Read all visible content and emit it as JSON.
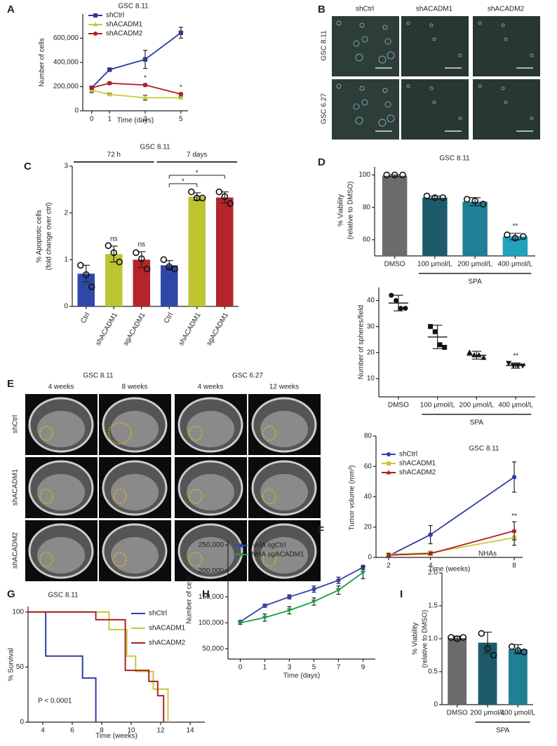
{
  "chart_data": [
    {
      "type": "line",
      "panel_label": "A",
      "title": "GSC 8.11",
      "x_label": "Time (days)",
      "y_label": [
        "Number of cells"
      ],
      "x": [
        0,
        1,
        3,
        5
      ],
      "xlim": [
        -0.5,
        5.4
      ],
      "xticks": [
        0,
        1,
        3,
        5
      ],
      "ylim": [
        0,
        800000
      ],
      "yticks": [
        0,
        {
          "value": 200000,
          "label": "200,000"
        },
        {
          "value": 400000,
          "label": "400,000"
        },
        {
          "value": 600000,
          "label": "600,000"
        }
      ],
      "legend": "upper left",
      "series": [
        {
          "name": "shCtrl",
          "color": "#2b3990",
          "marker": "square",
          "values": [
            190000,
            340000,
            425000,
            645000
          ],
          "errors": [
            10000,
            10000,
            75000,
            45000
          ]
        },
        {
          "name": "shACADM1",
          "color": "#c8c83c",
          "marker": "triangle",
          "values": [
            170000,
            135000,
            108000,
            108000
          ],
          "errors": [
            20000,
            10000,
            20000,
            8000
          ]
        },
        {
          "name": "shACADM2",
          "color": "#b11f24",
          "marker": "circle",
          "values": [
            190000,
            228000,
            213000,
            138000
          ],
          "errors": [
            10000,
            10000,
            10000,
            8000
          ],
          "labels": [
            null,
            null,
            "*",
            "*"
          ]
        }
      ]
    },
    {
      "type": "bar",
      "panel_label": "C",
      "title": "GSC 8.11",
      "y_label": [
        "% Apoptotic cells",
        "(fold change over ctrl)"
      ],
      "categories": [
        "Ctrl",
        "shACADM1",
        "sgACADM1",
        "Ctrl",
        "shACADM1",
        "sgACADM1"
      ],
      "rotate_labels": true,
      "values": [
        0.7,
        1.12,
        1.0,
        0.88,
        2.35,
        2.33
      ],
      "errors": [
        0.18,
        0.17,
        0.17,
        0.1,
        0.08,
        0.12
      ],
      "points": [
        [
          0.88,
          0.68,
          0.42
        ],
        [
          1.3,
          1.15,
          0.95
        ],
        [
          1.15,
          1.02,
          0.8
        ],
        [
          1.0,
          0.85,
          0.8
        ],
        [
          2.45,
          2.32,
          2.32
        ],
        [
          2.45,
          2.35,
          2.2
        ]
      ],
      "colors": [
        "#2f48a8",
        "#bcc430",
        "#b5242a",
        "#2f48a8",
        "#bcc430",
        "#b5242a"
      ],
      "ylim": [
        0,
        3
      ],
      "yticks": [
        0,
        1,
        2,
        3
      ],
      "annotations": [
        null,
        "ns",
        "ns",
        null,
        null,
        null
      ],
      "group_labels": [
        "72 h",
        "7 days"
      ],
      "bracket_labels": [
        "*",
        "*"
      ]
    },
    {
      "type": "bar",
      "panel_label": "D",
      "title": "GSC 8.11",
      "y_label": [
        "% Viability",
        "(relative to DMSO)"
      ],
      "categories": [
        "DMSO",
        "100 μmol/L",
        "200 μmol/L",
        "400 μmol/L"
      ],
      "values": [
        99.5,
        86,
        83.5,
        62
      ],
      "errors": [
        0.5,
        1,
        2.5,
        2
      ],
      "points": [
        [
          100,
          100,
          100
        ],
        [
          87,
          86,
          86
        ],
        [
          85,
          84,
          82
        ],
        [
          63,
          61,
          62
        ]
      ],
      "colors": [
        "#6b6b6b",
        "#1d5b6b",
        "#1f7f94",
        "#23a2bd"
      ],
      "ylim": [
        50,
        105
      ],
      "yticks": [
        60,
        80,
        100
      ],
      "annotations": [
        null,
        null,
        null,
        "**"
      ],
      "group_label": "SPA"
    },
    {
      "type": "dot",
      "y_label": [
        "Number of spheres/field"
      ],
      "categories": [
        "DMSO",
        "100 μmol/L",
        "200 μmol/L",
        "400 μmol/L"
      ],
      "values": [
        39,
        26,
        19,
        15
      ],
      "errors": [
        3,
        4.5,
        1.5,
        1
      ],
      "points": [
        [
          42,
          40,
          37,
          37
        ],
        [
          30,
          28,
          23,
          22
        ],
        [
          20,
          19,
          19,
          18
        ],
        [
          16,
          15,
          15,
          15
        ]
      ],
      "markers": [
        "circle",
        "square",
        "triangle",
        "triangle-down"
      ],
      "color": "#111111",
      "ylim": [
        3,
        45
      ],
      "yticks": [
        10,
        20,
        30,
        40
      ],
      "annotations": [
        null,
        null,
        null,
        "**"
      ],
      "group_label": "SPA"
    },
    {
      "type": "line",
      "panel_label": "F",
      "title": "GSC 8.11",
      "x_label": "Time (weeks)",
      "y_label": [
        "Tumor volume (mm³)"
      ],
      "x": [
        2,
        4,
        8
      ],
      "xlim": [
        1.4,
        8.4
      ],
      "xticks": [
        2,
        4,
        8
      ],
      "ylim": [
        0,
        80
      ],
      "yticks": [
        0,
        20,
        40,
        60,
        80
      ],
      "legend": "upper left",
      "series": [
        {
          "name": "shCtrl",
          "color": "#2e3fa8",
          "marker": "circle",
          "values": [
            1,
            15,
            53
          ],
          "errors": [
            1,
            6,
            10
          ]
        },
        {
          "name": "shACADM1",
          "color": "#c8c83c",
          "marker": "square",
          "values": [
            2,
            3,
            13
          ],
          "errors": [
            1,
            1,
            5
          ]
        },
        {
          "name": "shACADM2",
          "color": "#b11f24",
          "marker": "triangle",
          "values": [
            1.5,
            2.5,
            17.5
          ],
          "errors": [
            1,
            1,
            6
          ],
          "labels": [
            null,
            null,
            "**"
          ]
        }
      ]
    },
    {
      "type": "step",
      "panel_label": "G",
      "title": "GSC 8.11",
      "x_label": "Time (weeks)",
      "y_label": [
        "% Survival"
      ],
      "annotation": "P < 0.0001",
      "xlim": [
        3,
        15
      ],
      "xticks": [
        4,
        6,
        8,
        10,
        12,
        14
      ],
      "ylim": [
        0,
        105
      ],
      "yticks": [
        0,
        50,
        100
      ],
      "legend": "upper right",
      "series": [
        {
          "name": "shCtrl",
          "color": "#2e3fa8",
          "x": [
            3,
            4.2,
            6.7,
            7.6
          ],
          "values": [
            100,
            60,
            40,
            0
          ]
        },
        {
          "name": "shACADM1",
          "color": "#c8c83c",
          "x": [
            3,
            8.5,
            9.7,
            10.3,
            11.5,
            12.5
          ],
          "values": [
            100,
            84,
            60,
            46,
            30,
            0
          ]
        },
        {
          "name": "shACADM2",
          "color": "#b11f24",
          "x": [
            3,
            7.6,
            9.6,
            11.2,
            11.8,
            12.2
          ],
          "values": [
            100,
            93,
            47,
            37,
            24,
            0
          ]
        }
      ]
    },
    {
      "type": "line",
      "panel_label": "H",
      "x_label": "Time (days)",
      "y_label": [
        "Number of cells"
      ],
      "categories": [
        "0",
        "1",
        "3",
        "5",
        "7",
        "9"
      ],
      "ylim": [
        30000,
        260000
      ],
      "yticks": [
        {
          "value": 50000,
          "label": "50,000"
        },
        {
          "value": 100000,
          "label": "100,000"
        },
        {
          "value": 150000,
          "label": "150,000"
        },
        {
          "value": 200000,
          "label": "200,000"
        },
        {
          "value": 250000,
          "label": "250,000"
        }
      ],
      "legend": "upper left",
      "series": [
        {
          "name": "NHA sgCtrl",
          "color": "#3a3fb0",
          "marker": "circle",
          "values": [
            102000,
            133000,
            150000,
            165000,
            182000,
            207000
          ],
          "errors": [
            2000,
            3000,
            4000,
            6000,
            6000,
            4000
          ]
        },
        {
          "name": "NHA sgACADM1",
          "color": "#1e9a48",
          "marker": "triangle-down",
          "values": [
            100000,
            110000,
            124000,
            141000,
            163000,
            197000
          ],
          "errors": [
            3000,
            7000,
            7000,
            7000,
            8000,
            12000
          ]
        }
      ]
    },
    {
      "type": "bar",
      "panel_label": "I",
      "title": "NHAs",
      "y_label": [
        "% Viability",
        "(relative to DMSO)"
      ],
      "categories": [
        "DMSO",
        "200 μmol/L",
        "400 μmol/L"
      ],
      "values": [
        1.01,
        0.94,
        0.84
      ],
      "errors": [
        0.03,
        0.16,
        0.07
      ],
      "points": [
        [
          1.02,
          1.0,
          1.02
        ],
        [
          1.08,
          0.85,
          0.75
        ],
        [
          0.88,
          0.82,
          0.8
        ]
      ],
      "colors": [
        "#6b6b6b",
        "#1d5b6b",
        "#1f7f94"
      ],
      "ylim": [
        0,
        2
      ],
      "yticks": [
        0,
        0.5,
        {
          "value": 1,
          "label": "1.0"
        },
        1.5,
        {
          "value": 2,
          "label": "2.0"
        }
      ],
      "group_label": "SPA"
    }
  ],
  "image_panels": [
    {
      "panel_label": "B",
      "column_labels": [
        "shCtrl",
        "shACADM1",
        "shACADM2"
      ],
      "row_labels": [
        "GSC 8.11",
        "GSC 6.27"
      ]
    },
    {
      "panel_label": "E",
      "titles": [
        "GSC 8.11",
        "GSC 6.27"
      ],
      "column_labels": [
        "4 weeks",
        "8 weeks",
        "4 weeks",
        "12 weeks"
      ],
      "row_labels": [
        "shCtrl",
        "shACADM1",
        "shACADM2"
      ]
    }
  ]
}
